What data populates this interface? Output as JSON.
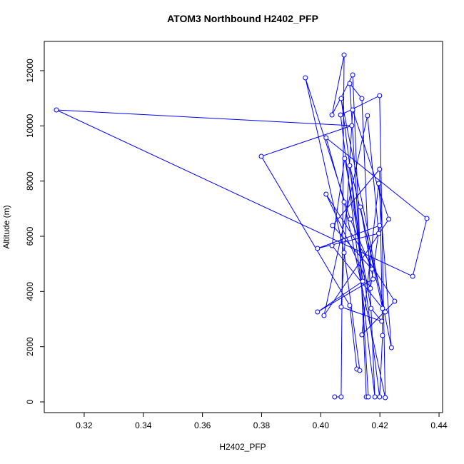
{
  "chart_data": {
    "type": "line",
    "title": "ATOM3 Northbound H2402_PFP",
    "x_label": "H2402_PFP",
    "y_label": "Altitude (m)",
    "xlim": [
      0.3065,
      0.4412
    ],
    "ylim": [
      -388,
      13060
    ],
    "xticks": [
      0.32,
      0.34,
      0.36,
      0.38,
      {
        "value": 0.4,
        "label": "0.40"
      },
      0.42,
      0.44
    ],
    "yticks": [
      0,
      2000,
      4000,
      6000,
      8000,
      10000,
      12000
    ],
    "series": [
      {
        "name": "H2402_PFP",
        "color": "#0000ff",
        "x": [
          0.4047,
          0.4069,
          0.4079,
          0.4038,
          0.4108,
          0.4154,
          0.4161,
          0.4098,
          0.4139,
          0.4183,
          0.4067,
          0.4199,
          0.4218,
          0.4079,
          0.4018,
          0.4359,
          0.4311,
          0.3106,
          0.4105,
          0.3799,
          0.4098,
          0.4122,
          0.4132,
          0.4079,
          0.3948,
          0.41,
          0.4173,
          0.404,
          0.4199,
          0.4209,
          0.4199,
          0.4069,
          0.4239,
          0.4196,
          0.4139,
          0.425,
          0.4018,
          0.4168,
          0.4199,
          0.3989,
          0.4196,
          0.4158,
          0.4011,
          0.423,
          0.4108,
          0.4069,
          0.4206,
          0.417,
          0.4081,
          0.4038,
          0.4209,
          0.4134,
          0.4177,
          0.3989,
          0.4142,
          0.4098,
          0.4218
        ],
        "values": [
          181,
          181,
          12568,
          10396,
          11844,
          181,
          181,
          11534,
          10990,
          181,
          10396,
          11094,
          155,
          7241,
          9568,
          6646,
          4551,
          10577,
          10008,
          8896,
          3491,
          1190,
          1138,
          5405,
          11740,
          6620,
          4810,
          6387,
          8430,
          2405,
          181,
          10990,
          1965,
          7913,
          2431,
          3646,
          7525,
          4112,
          6387,
          5560,
          6103,
          10370,
          3129,
          6620,
          10577,
          3440,
          2922,
          3388,
          8818,
          5663,
          3388,
          7060,
          4448,
          3258,
          4370,
          8560,
          3258
        ]
      }
    ]
  }
}
